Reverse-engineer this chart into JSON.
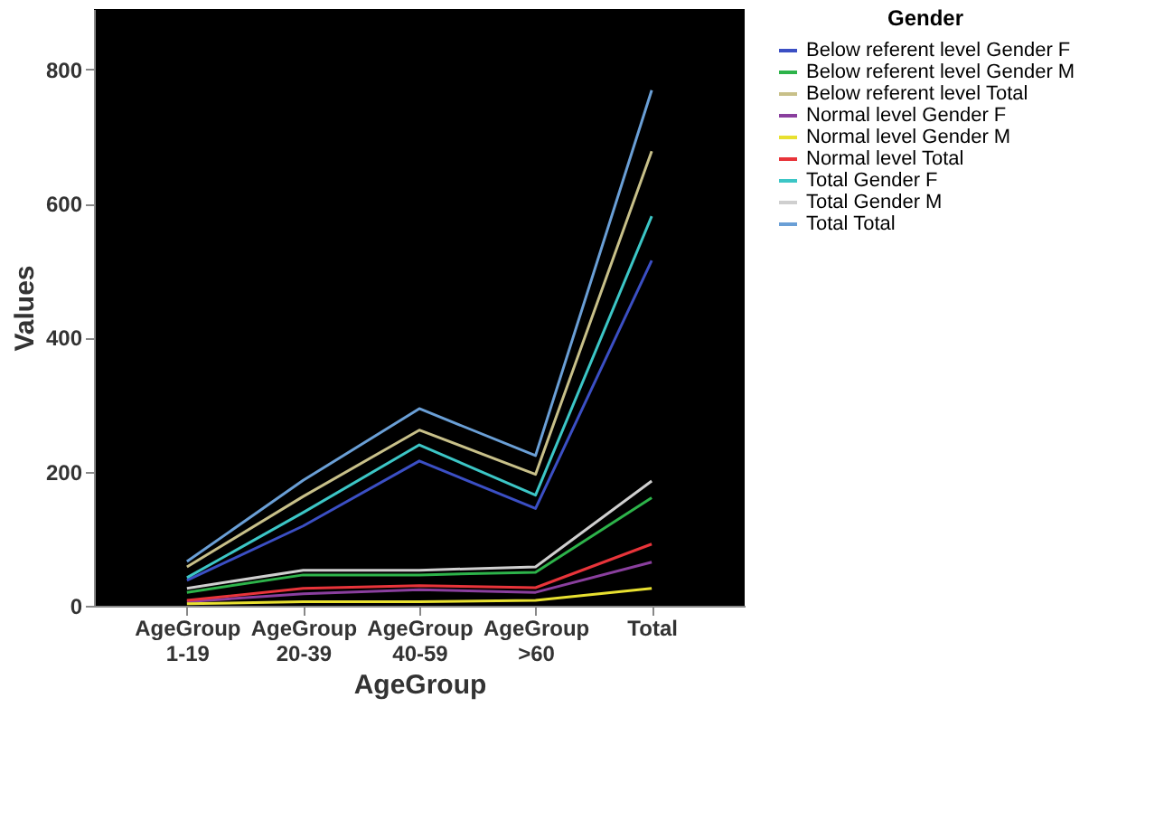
{
  "chart_data": {
    "type": "line",
    "xlabel": "AgeGroup",
    "ylabel": "Values",
    "legend_title": "Gender",
    "legend": "top right",
    "grid": false,
    "marker": "none",
    "line_style": "solid",
    "categories": [
      "AgeGroup\n1-19",
      "AgeGroup\n20-39",
      "AgeGroup\n40-59",
      "AgeGroup\n>60",
      "Total"
    ],
    "ylim": [
      0,
      890
    ],
    "yticks": [
      0,
      200,
      400,
      600,
      800
    ],
    "series": [
      {
        "name": "Below referent level Gender F",
        "color": "#3b4fc4",
        "values": [
          38,
          119,
          216,
          145,
          515
        ]
      },
      {
        "name": "Below referent level Gender M",
        "color": "#2db34a",
        "values": [
          20,
          46,
          46,
          50,
          161
        ]
      },
      {
        "name": "Below referent level Total",
        "color": "#c8c089",
        "values": [
          58,
          163,
          262,
          196,
          678
        ]
      },
      {
        "name": "Normal level Gender F",
        "color": "#8a3f9e",
        "values": [
          6,
          18,
          24,
          20,
          65
        ]
      },
      {
        "name": "Normal level Gender M",
        "color": "#e8e030",
        "values": [
          3,
          6,
          6,
          8,
          26
        ]
      },
      {
        "name": "Normal level Total",
        "color": "#e8343a",
        "values": [
          8,
          26,
          30,
          27,
          92
        ]
      },
      {
        "name": "Total Gender F",
        "color": "#3cc6c6",
        "values": [
          42,
          139,
          240,
          165,
          581
        ]
      },
      {
        "name": "Total Gender M",
        "color": "#cfcfcf",
        "values": [
          26,
          53,
          53,
          58,
          186
        ]
      },
      {
        "name": "Total Total",
        "color": "#6a9fd6",
        "values": [
          66,
          187,
          294,
          224,
          769
        ]
      }
    ]
  }
}
